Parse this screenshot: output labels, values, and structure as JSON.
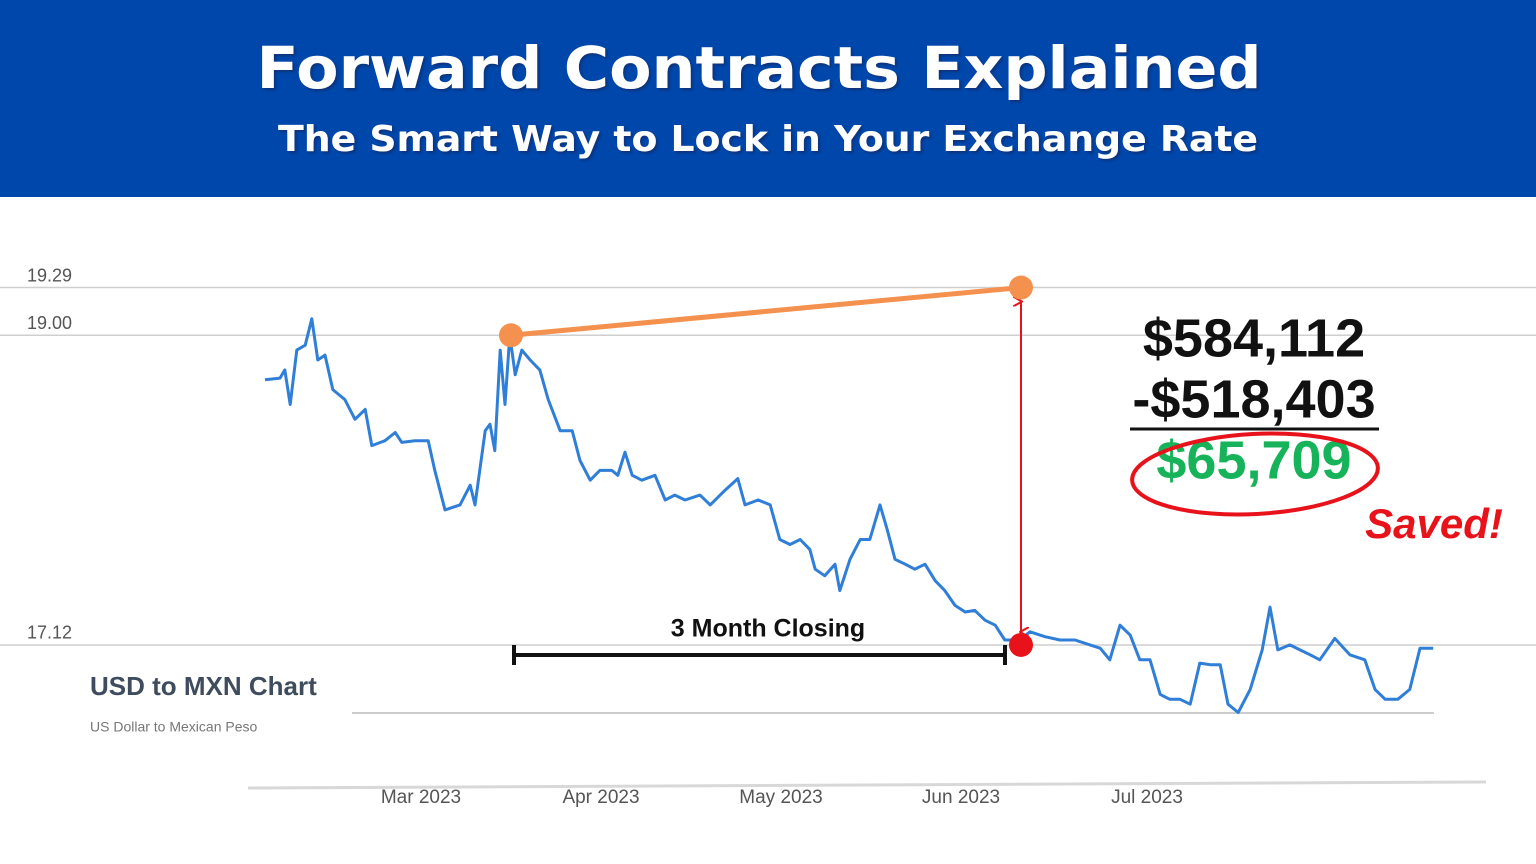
{
  "header": {
    "title": "Forward Contracts Explained",
    "subtitle": "The Smart Way to Lock in Your Exchange Rate"
  },
  "chart_data": {
    "type": "line",
    "title": "USD to MXN Chart",
    "subtitle": "US Dollar to Mexican Peso",
    "color": "#2f7ed8",
    "x": [
      0,
      2.5,
      3.3,
      4.2,
      5.3,
      6.7,
      7.8,
      8.8,
      10,
      11.3,
      13.3,
      15,
      16.7,
      17.8,
      20,
      21.7,
      22.8,
      25,
      27.2,
      28.3,
      30,
      32.5,
      34.2,
      35,
      36.7,
      37.5,
      38.3,
      39.2,
      40,
      40.8,
      41.7,
      42.8,
      44.2,
      45.8,
      47.2,
      49.2,
      51.2,
      52.5,
      54.2,
      55.8,
      57.8,
      58.8,
      60,
      61.2,
      62.8,
      65,
      66.7,
      68.3,
      70,
      72.5,
      74.2,
      76.7,
      78.8,
      80,
      82.2,
      84.2,
      85.8,
      87.5,
      89.2,
      90.8,
      91.7,
      93.3,
      95,
      95.8,
      97.5,
      99.2,
      100.8,
      102.5,
      103.7,
      105,
      106.7,
      108.3,
      110,
      111.7,
      113.3,
      115,
      116.7,
      118.3,
      120,
      121.7,
      123.3,
      125.8,
      127.5,
      130,
      132.5,
      135,
      137.5,
      139.2,
      140.8,
      142.5,
      144.2,
      145.8,
      147.5,
      149.2,
      150.8,
      152.5,
      154.2,
      155.8,
      157.5,
      159.2,
      160.5,
      162.2,
      164.2,
      166.2,
      167.5,
      168.8,
      170.8,
      172.5,
      174.2,
      175.8,
      178.3,
      180.8,
      183.3,
      185,
      186.7,
      188.8,
      190.8,
      192.5,
      194.7
    ],
    "values": [
      18.73,
      18.74,
      18.79,
      18.58,
      18.91,
      18.94,
      19.1,
      18.85,
      18.88,
      18.67,
      18.61,
      18.49,
      18.55,
      18.33,
      18.36,
      18.41,
      18.35,
      18.36,
      18.36,
      18.18,
      17.94,
      17.97,
      18.09,
      17.97,
      18.42,
      18.46,
      18.3,
      18.91,
      18.58,
      19.0,
      18.76,
      18.91,
      18.85,
      18.79,
      18.61,
      18.42,
      18.42,
      18.24,
      18.12,
      18.18,
      18.18,
      18.15,
      18.29,
      18.15,
      18.12,
      18.15,
      18.0,
      18.03,
      18.0,
      18.03,
      17.97,
      18.06,
      18.13,
      17.97,
      18.0,
      17.97,
      17.76,
      17.73,
      17.76,
      17.7,
      17.58,
      17.54,
      17.61,
      17.45,
      17.64,
      17.76,
      17.76,
      17.97,
      17.82,
      17.64,
      17.61,
      17.58,
      17.61,
      17.51,
      17.45,
      17.36,
      17.32,
      17.33,
      17.27,
      17.24,
      17.15,
      17.15,
      17.2,
      17.17,
      17.15,
      17.15,
      17.12,
      17.1,
      17.03,
      17.24,
      17.18,
      17.03,
      17.03,
      16.82,
      16.79,
      16.79,
      16.76,
      17.01,
      17.0,
      17.0,
      16.76,
      16.71,
      16.85,
      17.09,
      17.35,
      17.09,
      17.12,
      17.09,
      17.06,
      17.03,
      17.16,
      17.06,
      17.03,
      16.85,
      16.79,
      16.79,
      16.85,
      17.1,
      17.1
    ],
    "xlim": [
      0,
      200
    ],
    "xticks": [
      {
        "value": 26,
        "label": "Mar 2023"
      },
      {
        "value": 56,
        "label": "Apr 2023"
      },
      {
        "value": 86,
        "label": "May 2023"
      },
      {
        "value": 116,
        "label": "Jun 2023"
      },
      {
        "value": 147,
        "label": "Jul 2023"
      }
    ],
    "ylim": [
      16.3,
      19.7
    ],
    "yticks": [
      19.29,
      {
        "value": 19,
        "label": "19.00"
      },
      17.12
    ],
    "grid": true,
    "markers": [
      {
        "x": 41,
        "y": 19,
        "color": "#f4914f"
      },
      {
        "x": 126,
        "y": 19.29,
        "color": "#f4914f"
      },
      {
        "x": 126,
        "y": 17.12,
        "color": "#e8121b"
      }
    ],
    "annotations": {
      "closing": "3 Month Closing",
      "forward_cost": "$584,112",
      "spot_cost": "-$518,403",
      "savings": "$65,709",
      "savings_note": "Saved!"
    }
  }
}
